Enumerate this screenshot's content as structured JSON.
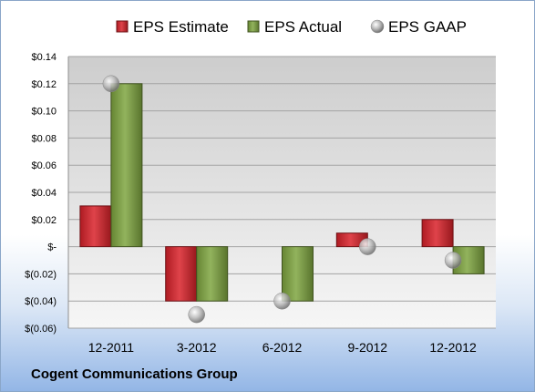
{
  "chart_data": {
    "type": "bar",
    "categories": [
      "12-2011",
      "3-2012",
      "6-2012",
      "9-2012",
      "12-2012"
    ],
    "series": [
      {
        "name": "EPS Estimate",
        "kind": "bar",
        "color": "#d9222a",
        "values": [
          0.03,
          -0.04,
          null,
          0.01,
          0.02
        ]
      },
      {
        "name": "EPS Actual",
        "kind": "bar",
        "color": "#7fa640",
        "values": [
          0.12,
          -0.04,
          -0.04,
          null,
          -0.02
        ]
      },
      {
        "name": "EPS GAAP",
        "kind": "marker",
        "color": "#b8b8b8",
        "values": [
          0.12,
          -0.05,
          -0.04,
          0.0,
          -0.01
        ]
      }
    ],
    "ylim": [
      -0.06,
      0.14
    ],
    "yticks": [
      0.14,
      0.12,
      0.1,
      0.08,
      0.06,
      0.04,
      0.02,
      0.0,
      -0.02,
      -0.04,
      -0.06
    ],
    "ytick_labels": [
      "$0.14",
      "$0.12",
      "$0.10",
      "$0.08",
      "$0.06",
      "$0.04",
      "$0.02",
      "$-",
      "$(0.02)",
      "$(0.04)",
      "$(0.06)"
    ],
    "grid": true,
    "legend_position": "top"
  },
  "footer": {
    "company": "Cogent Communications Group"
  }
}
